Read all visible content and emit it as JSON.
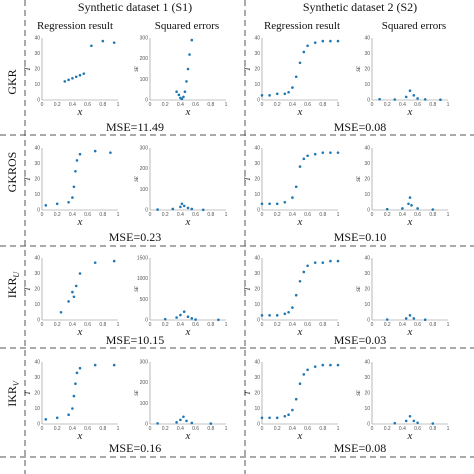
{
  "figure": {
    "columns": [
      "Synthetic dataset 1 (S1)",
      "Synthetic dataset 2 (S2)"
    ],
    "subplot_titles": [
      "Regression result",
      "Squared errors",
      "Regression result",
      "Squared errors"
    ],
    "rows": [
      {
        "method": "GKR",
        "mse": [
          "MSE=11.49",
          "MSE=0.08"
        ]
      },
      {
        "method": "GKROS",
        "mse": [
          "MSE=0.23",
          "MSE=0.10"
        ]
      },
      {
        "method": "IKR",
        "sub": "U",
        "mse": [
          "MSE=10.15",
          "MSE=0.03"
        ]
      },
      {
        "method": "IKR",
        "sub": "V",
        "mse": [
          "MSE=0.16",
          "MSE=0.08"
        ]
      }
    ]
  },
  "axis_labels": {
    "x": "x",
    "y_regression": "T",
    "y_errors": "SE"
  },
  "colors": {
    "points": "#1f77b4",
    "grid_line": "#555555"
  },
  "chart_data": [
    {
      "type": "scatter",
      "panel": "GKR-S1-regression",
      "xlim": [
        0,
        1
      ],
      "ylim": [
        0,
        40
      ],
      "x_ticks": [
        "0",
        "0.2",
        "0.4",
        "0.6",
        "0.8",
        "1"
      ],
      "y_ticks": [
        "0",
        "10",
        "20",
        "30",
        "40"
      ],
      "series": [
        {
          "x": [
            0.3,
            0.35,
            0.4,
            0.45,
            0.5,
            0.55,
            0.65,
            0.8,
            0.95
          ],
          "y": [
            12,
            13,
            14,
            15,
            16,
            17,
            35,
            38,
            37
          ]
        }
      ]
    },
    {
      "type": "scatter",
      "panel": "GKR-S1-errors",
      "xlim": [
        0,
        1
      ],
      "ylim": [
        0,
        300
      ],
      "x_ticks": [
        "0",
        "0.2",
        "0.4",
        "0.6",
        "0.8",
        "1"
      ],
      "y_ticks": [
        "0",
        "100",
        "200",
        "300"
      ],
      "series": [
        {
          "x": [
            0.35,
            0.38,
            0.4,
            0.42,
            0.44,
            0.46,
            0.48,
            0.5,
            0.52,
            0.55
          ],
          "y": [
            40,
            25,
            10,
            5,
            15,
            40,
            90,
            150,
            220,
            290
          ]
        }
      ]
    },
    {
      "type": "scatter",
      "panel": "GKR-S2-regression",
      "xlim": [
        0,
        1
      ],
      "ylim": [
        0,
        40
      ],
      "x_ticks": [
        "0",
        "0.2",
        "0.4",
        "0.6",
        "0.8",
        "1"
      ],
      "y_ticks": [
        "0",
        "10",
        "20",
        "30",
        "40"
      ],
      "series": [
        {
          "x": [
            0,
            0.1,
            0.2,
            0.3,
            0.35,
            0.4,
            0.45,
            0.5,
            0.55,
            0.6,
            0.7,
            0.8,
            0.9,
            1.0
          ],
          "y": [
            3,
            3,
            4,
            4,
            5,
            8,
            15,
            24,
            31,
            35,
            37,
            38,
            38,
            38
          ]
        }
      ]
    },
    {
      "type": "scatter",
      "panel": "GKR-S2-errors",
      "xlim": [
        0,
        1
      ],
      "ylim": [
        0,
        40
      ],
      "x_ticks": [
        "0",
        "0.2",
        "0.4",
        "0.6",
        "0.8",
        "1"
      ],
      "y_ticks": [
        "0",
        "10",
        "20",
        "30",
        "40"
      ],
      "series": [
        {
          "x": [
            0.1,
            0.3,
            0.45,
            0.5,
            0.55,
            0.6,
            0.7,
            0.9
          ],
          "y": [
            0.5,
            0.3,
            2,
            6,
            3,
            1,
            0.4,
            0.2
          ]
        }
      ]
    },
    {
      "type": "scatter",
      "panel": "GKROS-S1-regression",
      "xlim": [
        0,
        1
      ],
      "ylim": [
        0,
        40
      ],
      "x_ticks": [
        "0",
        "0.2",
        "0.4",
        "0.6",
        "0.8",
        "1"
      ],
      "y_ticks": [
        "0",
        "10",
        "20",
        "30",
        "40"
      ],
      "series": [
        {
          "x": [
            0.05,
            0.2,
            0.35,
            0.4,
            0.42,
            0.44,
            0.46,
            0.5,
            0.7,
            0.9
          ],
          "y": [
            3,
            4,
            5,
            8,
            15,
            25,
            32,
            36,
            38,
            37
          ]
        }
      ]
    },
    {
      "type": "scatter",
      "panel": "GKROS-S1-errors",
      "xlim": [
        0,
        1
      ],
      "ylim": [
        0,
        300
      ],
      "x_ticks": [
        "0",
        "0.2",
        "0.4",
        "0.6",
        "0.8",
        "1"
      ],
      "y_ticks": [
        "0",
        "100",
        "200",
        "300"
      ],
      "series": [
        {
          "x": [
            0.1,
            0.3,
            0.4,
            0.42,
            0.45,
            0.5,
            0.55,
            0.7
          ],
          "y": [
            2,
            5,
            15,
            30,
            20,
            10,
            5,
            1
          ]
        }
      ]
    },
    {
      "type": "scatter",
      "panel": "GKROS-S2-regression",
      "xlim": [
        0,
        1
      ],
      "ylim": [
        0,
        40
      ],
      "x_ticks": [
        "0",
        "0.2",
        "0.4",
        "0.6",
        "0.8",
        "1"
      ],
      "y_ticks": [
        "0",
        "10",
        "20",
        "30",
        "40"
      ],
      "series": [
        {
          "x": [
            0,
            0.1,
            0.2,
            0.3,
            0.4,
            0.45,
            0.5,
            0.55,
            0.6,
            0.7,
            0.8,
            0.9,
            1.0
          ],
          "y": [
            4,
            4,
            4,
            5,
            8,
            15,
            28,
            33,
            35,
            36,
            37,
            37,
            37
          ]
        }
      ]
    },
    {
      "type": "scatter",
      "panel": "GKROS-S2-errors",
      "xlim": [
        0,
        1
      ],
      "ylim": [
        0,
        40
      ],
      "x_ticks": [
        "0",
        "0.2",
        "0.4",
        "0.6",
        "0.8",
        "1"
      ],
      "y_ticks": [
        "0",
        "10",
        "20",
        "30",
        "40"
      ],
      "series": [
        {
          "x": [
            0.2,
            0.4,
            0.48,
            0.5,
            0.52,
            0.6,
            0.8
          ],
          "y": [
            0.5,
            1,
            4,
            8,
            3,
            1,
            0.3
          ]
        }
      ]
    },
    {
      "type": "scatter",
      "panel": "IKRU-S1-regression",
      "xlim": [
        0,
        1
      ],
      "ylim": [
        0,
        40
      ],
      "x_ticks": [
        "0",
        "0.2",
        "0.4",
        "0.6",
        "0.8",
        "1"
      ],
      "y_ticks": [
        "0",
        "10",
        "20",
        "30",
        "40"
      ],
      "series": [
        {
          "x": [
            0.25,
            0.35,
            0.4,
            0.42,
            0.45,
            0.5,
            0.7,
            0.95
          ],
          "y": [
            5,
            12,
            18,
            15,
            22,
            30,
            37,
            38
          ]
        }
      ]
    },
    {
      "type": "scatter",
      "panel": "IKRU-S1-errors",
      "xlim": [
        0,
        1
      ],
      "ylim": [
        0,
        1500
      ],
      "x_ticks": [
        "0",
        "0.2",
        "0.4",
        "0.6",
        "0.8",
        "1"
      ],
      "y_ticks": [
        "0",
        "500",
        "1000",
        "1500"
      ],
      "series": [
        {
          "x": [
            0.2,
            0.35,
            0.4,
            0.45,
            0.5,
            0.55,
            0.6,
            0.9
          ],
          "y": [
            20,
            60,
            120,
            200,
            80,
            40,
            10,
            5
          ]
        }
      ]
    },
    {
      "type": "scatter",
      "panel": "IKRU-S2-regression",
      "xlim": [
        0,
        1
      ],
      "ylim": [
        0,
        40
      ],
      "x_ticks": [
        "0",
        "0.2",
        "0.4",
        "0.6",
        "0.8",
        "1"
      ],
      "y_ticks": [
        "0",
        "10",
        "20",
        "30",
        "40"
      ],
      "series": [
        {
          "x": [
            0,
            0.1,
            0.2,
            0.3,
            0.35,
            0.4,
            0.45,
            0.5,
            0.55,
            0.6,
            0.7,
            0.8,
            0.9,
            1.0
          ],
          "y": [
            3,
            3,
            3,
            4,
            5,
            8,
            16,
            25,
            31,
            35,
            37,
            37,
            38,
            38
          ]
        }
      ]
    },
    {
      "type": "scatter",
      "panel": "IKRU-S2-errors",
      "xlim": [
        0,
        1
      ],
      "ylim": [
        0,
        40
      ],
      "x_ticks": [
        "0",
        "0.2",
        "0.4",
        "0.6",
        "0.8",
        "1"
      ],
      "y_ticks": [
        "0",
        "10",
        "20",
        "30",
        "40"
      ],
      "series": [
        {
          "x": [
            0.2,
            0.45,
            0.5,
            0.55,
            0.7
          ],
          "y": [
            0.3,
            1,
            3,
            1,
            0.2
          ]
        }
      ]
    },
    {
      "type": "scatter",
      "panel": "IKRV-S1-regression",
      "xlim": [
        0,
        1
      ],
      "ylim": [
        0,
        40
      ],
      "x_ticks": [
        "0",
        "0.2",
        "0.4",
        "0.6",
        "0.8",
        "1"
      ],
      "y_ticks": [
        "0",
        "10",
        "20",
        "30",
        "40"
      ],
      "series": [
        {
          "x": [
            0.05,
            0.2,
            0.35,
            0.4,
            0.42,
            0.44,
            0.46,
            0.5,
            0.7,
            0.95
          ],
          "y": [
            3,
            4,
            6,
            10,
            18,
            26,
            33,
            36,
            38,
            38
          ]
        }
      ]
    },
    {
      "type": "scatter",
      "panel": "IKRV-S1-errors",
      "xlim": [
        0,
        1
      ],
      "ylim": [
        0,
        300
      ],
      "x_ticks": [
        "0",
        "0.2",
        "0.4",
        "0.6",
        "0.8",
        "1"
      ],
      "y_ticks": [
        "0",
        "100",
        "200",
        "300"
      ],
      "series": [
        {
          "x": [
            0.1,
            0.35,
            0.4,
            0.44,
            0.48,
            0.55,
            0.8
          ],
          "y": [
            3,
            8,
            20,
            35,
            15,
            5,
            2
          ]
        }
      ]
    },
    {
      "type": "scatter",
      "panel": "IKRV-S2-regression",
      "xlim": [
        0,
        1
      ],
      "ylim": [
        0,
        40
      ],
      "x_ticks": [
        "0",
        "0.2",
        "0.4",
        "0.6",
        "0.8",
        "1"
      ],
      "y_ticks": [
        "0",
        "10",
        "20",
        "30",
        "40"
      ],
      "series": [
        {
          "x": [
            0,
            0.1,
            0.2,
            0.3,
            0.35,
            0.4,
            0.45,
            0.5,
            0.55,
            0.6,
            0.7,
            0.8,
            0.9,
            1.0
          ],
          "y": [
            4,
            4,
            4,
            5,
            6,
            9,
            16,
            26,
            32,
            35,
            37,
            38,
            38,
            38
          ]
        }
      ]
    },
    {
      "type": "scatter",
      "panel": "IKRV-S2-errors",
      "xlim": [
        0,
        1
      ],
      "ylim": [
        0,
        40
      ],
      "x_ticks": [
        "0",
        "0.2",
        "0.4",
        "0.6",
        "0.8",
        "1"
      ],
      "y_ticks": [
        "0",
        "10",
        "20",
        "30",
        "40"
      ],
      "series": [
        {
          "x": [
            0.3,
            0.45,
            0.5,
            0.55,
            0.6,
            0.8
          ],
          "y": [
            0.5,
            2,
            5,
            2,
            0.8,
            0.3
          ]
        }
      ]
    }
  ]
}
